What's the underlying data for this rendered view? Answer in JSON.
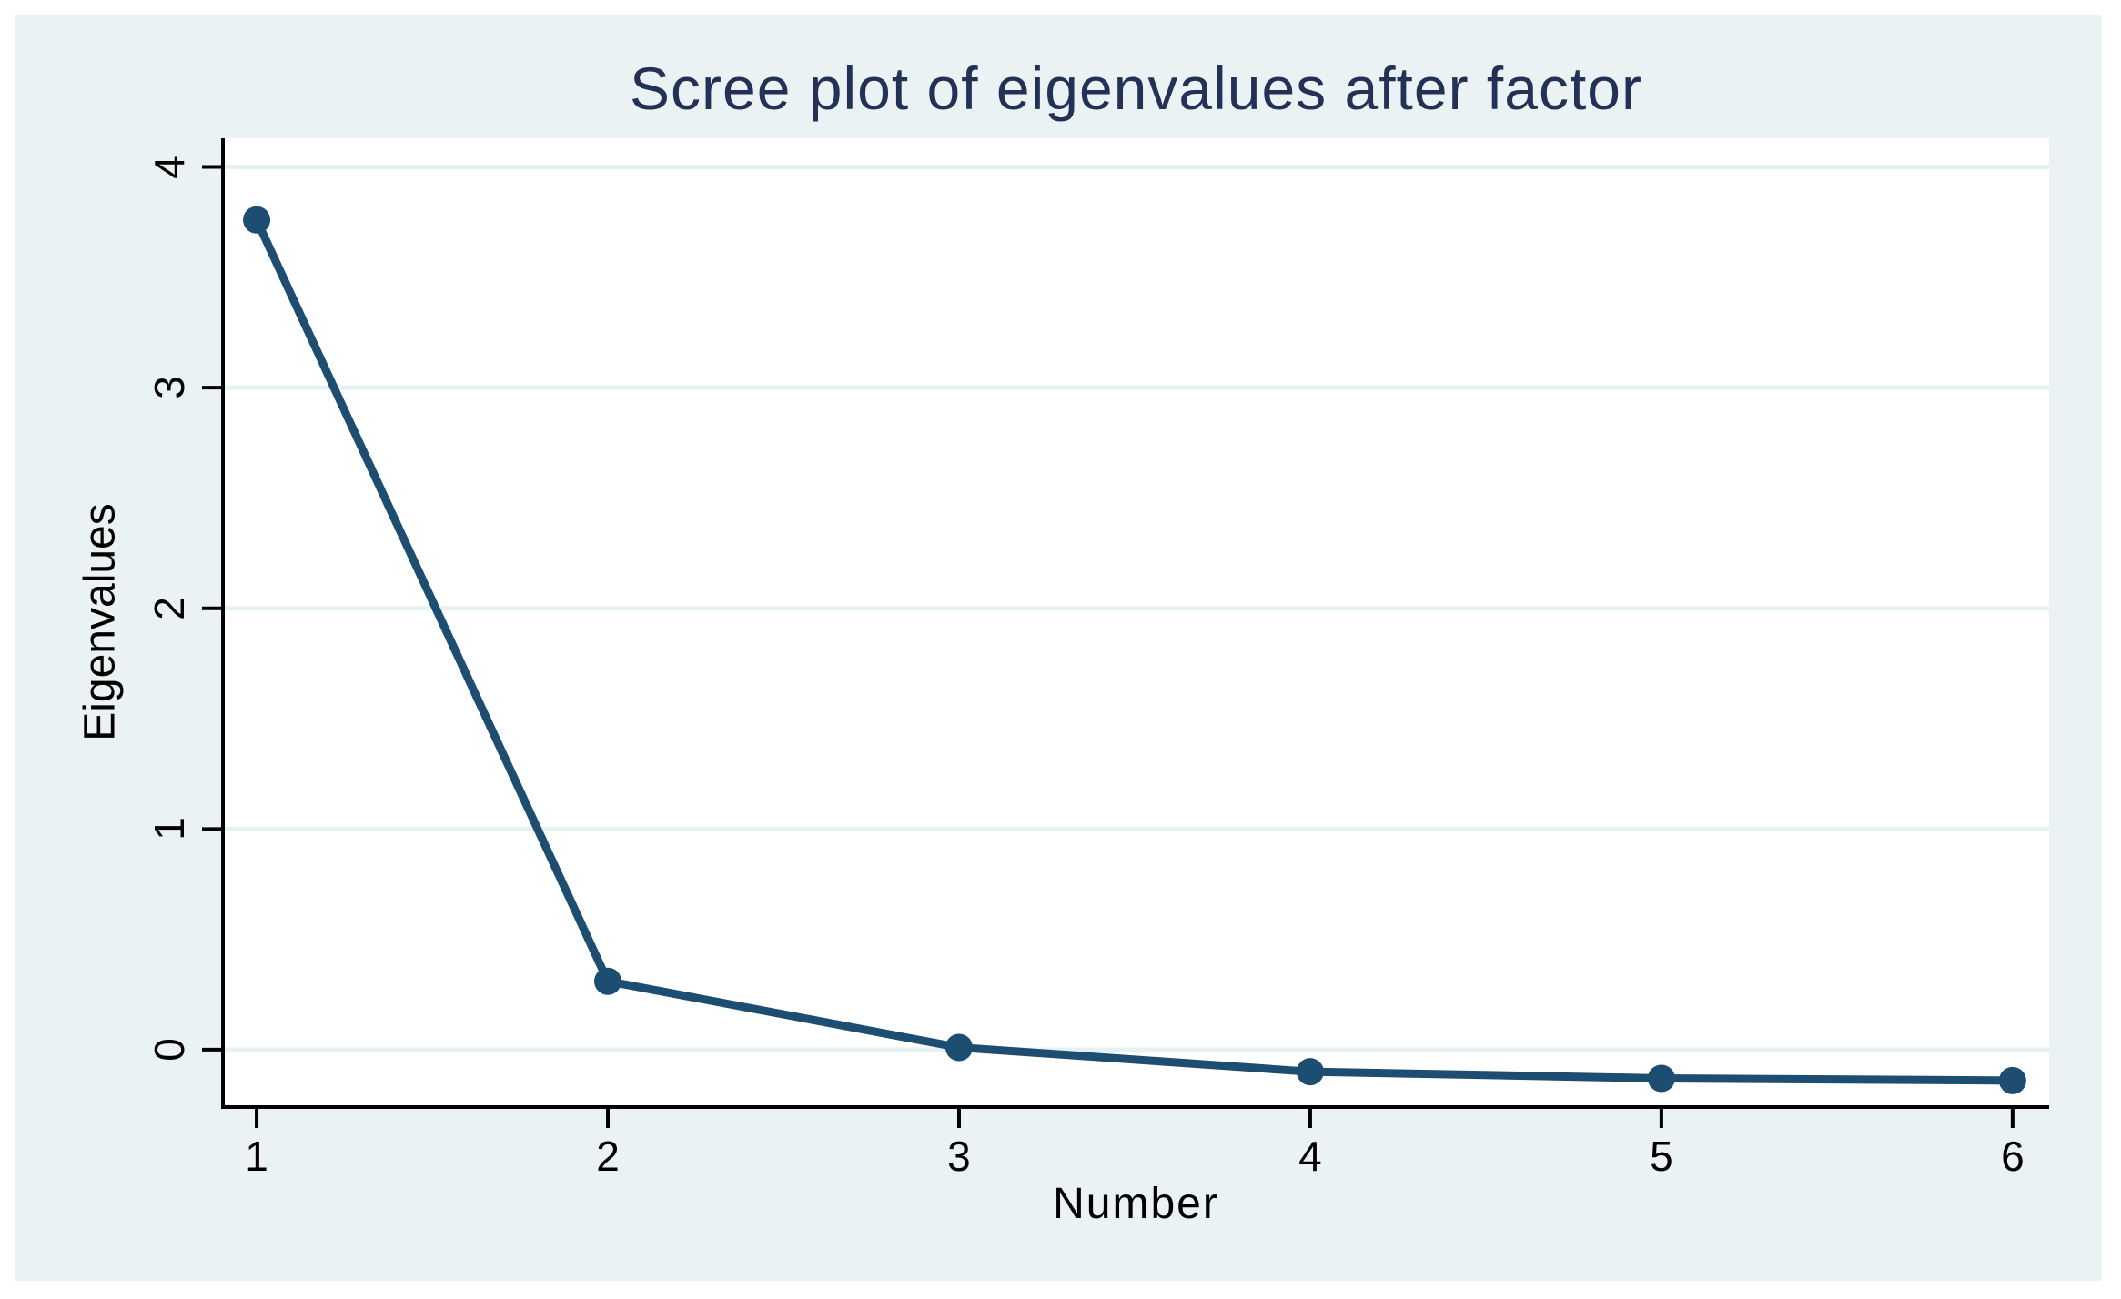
{
  "chart_data": {
    "type": "line",
    "title": "Scree plot of eigenvalues after factor",
    "xlabel": "Number",
    "ylabel": "Eigenvalues",
    "x": [
      1,
      2,
      3,
      4,
      5,
      6
    ],
    "values": [
      3.76,
      0.31,
      0.01,
      -0.1,
      -0.13,
      -0.14
    ],
    "series_name": "Eigenvalues",
    "xticks": [
      "1",
      "2",
      "3",
      "4",
      "5",
      "6"
    ],
    "yticks": [
      "0",
      "1",
      "2",
      "3",
      "4"
    ],
    "xtick_values": [
      1,
      2,
      3,
      4,
      5,
      6
    ],
    "ytick_values": [
      0,
      1,
      2,
      3,
      4
    ],
    "xlim": [
      0.904,
      6.104
    ],
    "ylim": [
      -0.26,
      4.13
    ],
    "grid": "horizontal gridlines at y ticks",
    "legend_position": "none",
    "marker": "filled-circle"
  },
  "colors": {
    "title_text": "#233156",
    "series": "#1d4d70",
    "axis": "#000000",
    "canvas_background": "#eaf2f3",
    "plot_background": "#ffffff",
    "gridline": "#e7f0f2",
    "page_background": "#ffffff"
  }
}
